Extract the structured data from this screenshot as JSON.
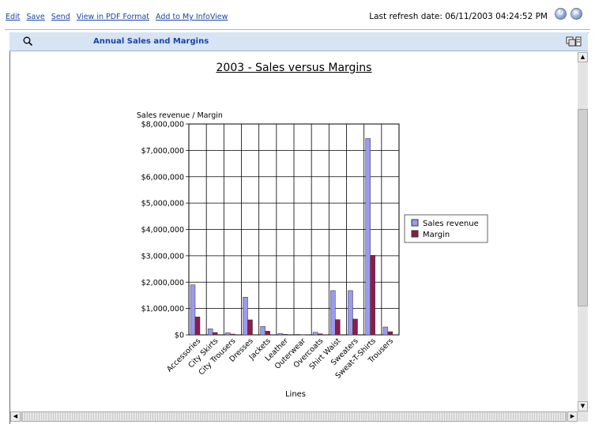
{
  "top_links": [
    "Edit",
    "Save",
    "Send",
    "View in PDF Format",
    "Add to My InfoView"
  ],
  "refresh_text": "Last refresh date: 06/11/2003 04:24:52 PM",
  "panel": {
    "title": "Annual Sales and Margins"
  },
  "chart_data": {
    "type": "bar",
    "title": "2003 - Sales versus Margins",
    "ylabel": "Sales revenue / Margin",
    "xlabel": "Lines",
    "ylim": [
      0,
      8000000
    ],
    "yticks": [
      "$0",
      "$1,000,000",
      "$2,000,000",
      "$3,000,000",
      "$4,000,000",
      "$5,000,000",
      "$6,000,000",
      "$7,000,000",
      "$8,000,000"
    ],
    "grid": true,
    "legend_position": "right",
    "categories": [
      "Accessories",
      "City Skirts",
      "City Trousers",
      "Dresses",
      "Jackets",
      "Leather",
      "Outerwear",
      "Overcoats",
      "Shirt Waist",
      "Sweaters",
      "Sweat-T-Shirts",
      "Trousers"
    ],
    "series": [
      {
        "name": "Sales revenue",
        "color": "#9a9af0",
        "values": [
          1900000,
          230000,
          80000,
          1430000,
          320000,
          50000,
          20000,
          100000,
          1680000,
          1680000,
          7450000,
          300000
        ]
      },
      {
        "name": "Margin",
        "color": "#8c1c4c",
        "values": [
          680000,
          90000,
          30000,
          570000,
          140000,
          20000,
          10000,
          40000,
          580000,
          600000,
          3020000,
          120000
        ]
      }
    ]
  }
}
